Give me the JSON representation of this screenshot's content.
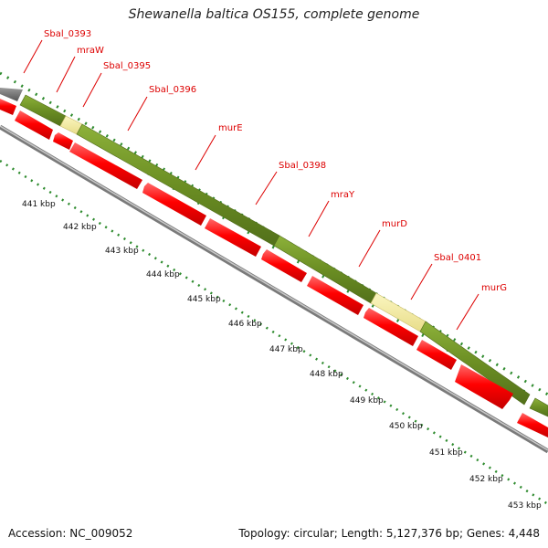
{
  "title": "Shewanella baltica OS155, complete genome",
  "footer": {
    "accession": "Accession: NC_009052",
    "summary": "Topology: circular; Length: 5,127,376 bp; Genes: 4,448"
  },
  "colors": {
    "forward_gene": "#6b8e23",
    "forward_gene_alt": "#f0e68c",
    "reverse_gene": "#ff0000",
    "unknown_gene": "#707070",
    "backbone": "#9a9a9a",
    "tick": "#2e8b2e",
    "label": "#dd0000"
  },
  "kbp_labels": [
    "441 kbp",
    "442 kbp",
    "443 kbp",
    "444 kbp",
    "445 kbp",
    "446 kbp",
    "447 kbp",
    "448 kbp",
    "449 kbp",
    "450 kbp",
    "451 kbp",
    "452 kbp",
    "453 kbp"
  ],
  "genes": [
    {
      "name": "Sbal_0393",
      "track": "unknown"
    },
    {
      "name": "mraW",
      "track": "forward"
    },
    {
      "name": "Sbal_0395",
      "track": "forward_alt"
    },
    {
      "name": "Sbal_0396",
      "track": "forward"
    },
    {
      "name": "murE",
      "track": "forward"
    },
    {
      "name": "Sbal_0398",
      "track": "forward"
    },
    {
      "name": "mraY",
      "track": "forward"
    },
    {
      "name": "murD",
      "track": "forward"
    },
    {
      "name": "Sbal_0401",
      "track": "forward_alt"
    },
    {
      "name": "murG",
      "track": "forward"
    }
  ]
}
